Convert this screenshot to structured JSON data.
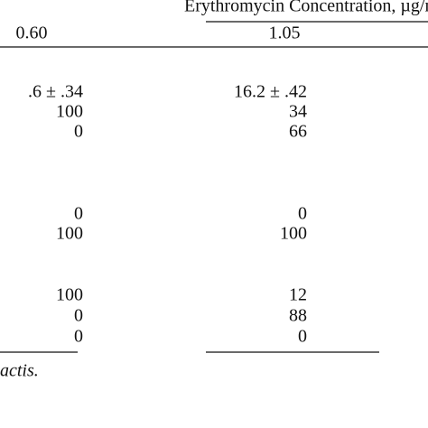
{
  "header": {
    "title": "Erythromycin Concentration, µg/m"
  },
  "table": {
    "columns": [
      "0.60",
      "1.05"
    ],
    "rows": [
      [
        ".6 ± .34",
        "16.2 ± .42"
      ],
      [
        "100",
        "34"
      ],
      [
        "0",
        "66"
      ],
      [
        "0",
        "0"
      ],
      [
        "100",
        "100"
      ],
      [
        "100",
        "12"
      ],
      [
        "0",
        "88"
      ],
      [
        "0",
        "0"
      ]
    ]
  },
  "footnote": "actis."
}
